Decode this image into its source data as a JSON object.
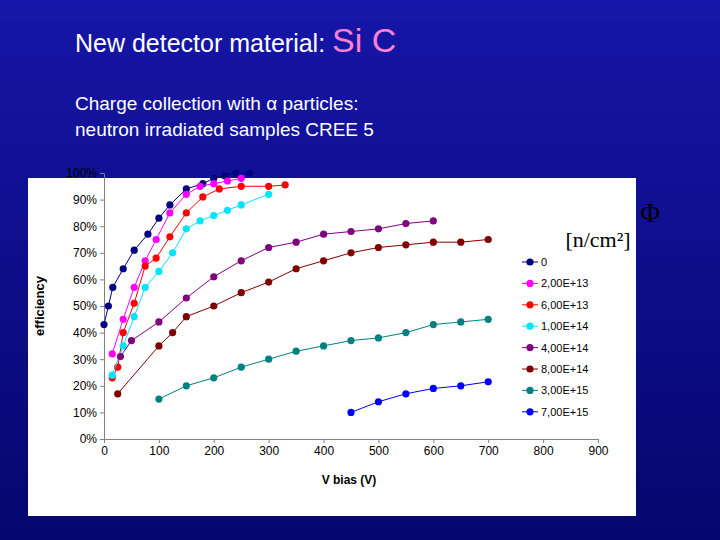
{
  "chart_data": {
    "type": "line",
    "title": "New detector material: Si C",
    "subtitle": "Charge collection with α particles: neutron irradiated samples CREE 5",
    "x_label": "V bias (V)",
    "y_label": "efficiency",
    "legend_title": [
      "Φ",
      "[n/cm²]"
    ],
    "legend": "right",
    "grid": false,
    "marker": "circle",
    "line_style": "solid",
    "xlim": [
      0,
      900
    ],
    "xticks": [
      0,
      100,
      200,
      300,
      400,
      500,
      600,
      700,
      800,
      900
    ],
    "ylim": [
      0,
      100
    ],
    "yticks": [
      {
        "value": 0,
        "label": "0%"
      },
      {
        "value": 10,
        "label": "10%"
      },
      {
        "value": 20,
        "label": "20%"
      },
      {
        "value": 30,
        "label": "30%"
      },
      {
        "value": 40,
        "label": "40%"
      },
      {
        "value": 50,
        "label": "50%"
      },
      {
        "value": 60,
        "label": "60%"
      },
      {
        "value": 70,
        "label": "70%"
      },
      {
        "value": 80,
        "label": "80%"
      },
      {
        "value": 90,
        "label": "90%"
      },
      {
        "value": 100,
        "label": "100%"
      }
    ],
    "series": [
      {
        "name": "0",
        "color": "#000080",
        "x": [
          0,
          8,
          16,
          35,
          55,
          80,
          100,
          120,
          150,
          180,
          200,
          220,
          240,
          265
        ],
        "values": [
          43,
          50,
          57,
          64,
          71,
          77,
          83,
          88,
          94,
          96,
          98,
          99,
          100,
          100
        ]
      },
      {
        "name": "2,00E+13",
        "color": "#ff00ff",
        "x": [
          15,
          35,
          55,
          75,
          95,
          120,
          150,
          175,
          200,
          225,
          250
        ],
        "values": [
          32,
          45,
          57,
          67,
          75,
          85,
          92,
          95,
          96,
          97,
          98
        ]
      },
      {
        "name": "6,00E+13",
        "color": "#ff0000",
        "x": [
          15,
          25,
          35,
          55,
          75,
          95,
          120,
          150,
          180,
          210,
          250,
          300,
          330
        ],
        "values": [
          23,
          27,
          40,
          51,
          65,
          68,
          76,
          85,
          91,
          94,
          95,
          95,
          95.5
        ]
      },
      {
        "name": "1,00E+14",
        "color": "#00e5ff",
        "x": [
          15,
          35,
          55,
          75,
          100,
          125,
          150,
          175,
          200,
          225,
          250,
          300
        ],
        "values": [
          24,
          35,
          46,
          57,
          63,
          70,
          79,
          82,
          84,
          86,
          88,
          92
        ]
      },
      {
        "name": "4,00E+14",
        "color": "#800080",
        "x": [
          30,
          50,
          100,
          150,
          200,
          250,
          300,
          350,
          400,
          450,
          500,
          550,
          600
        ],
        "values": [
          31,
          37,
          44,
          53,
          61,
          67,
          72,
          74,
          77,
          78,
          79,
          81,
          82
        ]
      },
      {
        "name": "8,00E+14",
        "color": "#800000",
        "x": [
          25,
          100,
          125,
          150,
          200,
          250,
          300,
          350,
          400,
          450,
          500,
          550,
          600,
          650,
          700
        ],
        "values": [
          17,
          35,
          40,
          46,
          50,
          55,
          59,
          64,
          67,
          70,
          72,
          73,
          74,
          74,
          75
        ]
      },
      {
        "name": "3,00E+15",
        "color": "#008080",
        "x": [
          100,
          150,
          200,
          250,
          300,
          350,
          400,
          450,
          500,
          550,
          600,
          650,
          700
        ],
        "values": [
          15,
          20,
          23,
          27,
          30,
          33,
          35,
          37,
          38,
          40,
          43,
          44,
          45
        ]
      },
      {
        "name": "7,00E+15",
        "color": "#0000ff",
        "x": [
          450,
          500,
          550,
          600,
          650,
          700
        ],
        "values": [
          10,
          14,
          17,
          19,
          20,
          21.5
        ]
      }
    ]
  }
}
